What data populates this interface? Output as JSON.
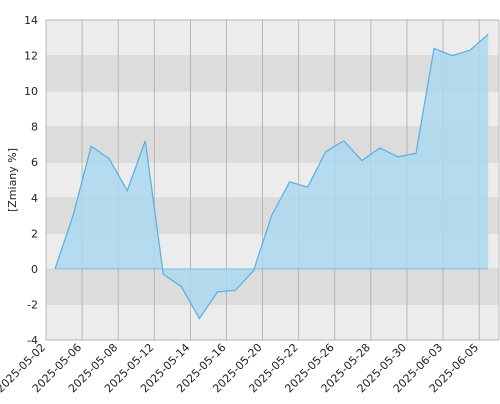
{
  "chart_data": {
    "type": "area",
    "y_label": "[Zmiany %]",
    "categories": [
      null,
      null,
      null,
      null,
      null,
      null,
      null,
      null,
      null,
      null,
      null,
      null,
      null,
      null,
      null,
      null,
      null,
      null,
      null,
      null,
      null,
      null,
      null,
      null,
      null
    ],
    "values": [
      0,
      3.0,
      6.9,
      6.2,
      4.4,
      7.2,
      -0.3,
      -1.0,
      -2.8,
      -1.3,
      -1.2,
      -0.1,
      3.0,
      4.9,
      4.6,
      6.6,
      7.2,
      6.1,
      6.8,
      6.3,
      6.5,
      12.4,
      12.0,
      12.3,
      13.2
    ],
    "xticks": [
      "2025-05-02",
      "2025-05-06",
      "2025-05-08",
      "2025-05-12",
      "2025-05-14",
      "2025-05-16",
      "2025-05-20",
      "2025-05-22",
      "2025-05-26",
      "2025-05-28",
      "2025-05-30",
      "2025-06-03",
      "2025-06-05"
    ],
    "ylim": [
      -4,
      14
    ],
    "yticks": [
      -4,
      -2,
      0,
      2,
      4,
      6,
      8,
      10,
      12,
      14
    ],
    "color": "#5aaee3",
    "fill": "#aad8ee",
    "band_colors": [
      "#ececec",
      "#dcdcdc"
    ],
    "grid": true
  }
}
